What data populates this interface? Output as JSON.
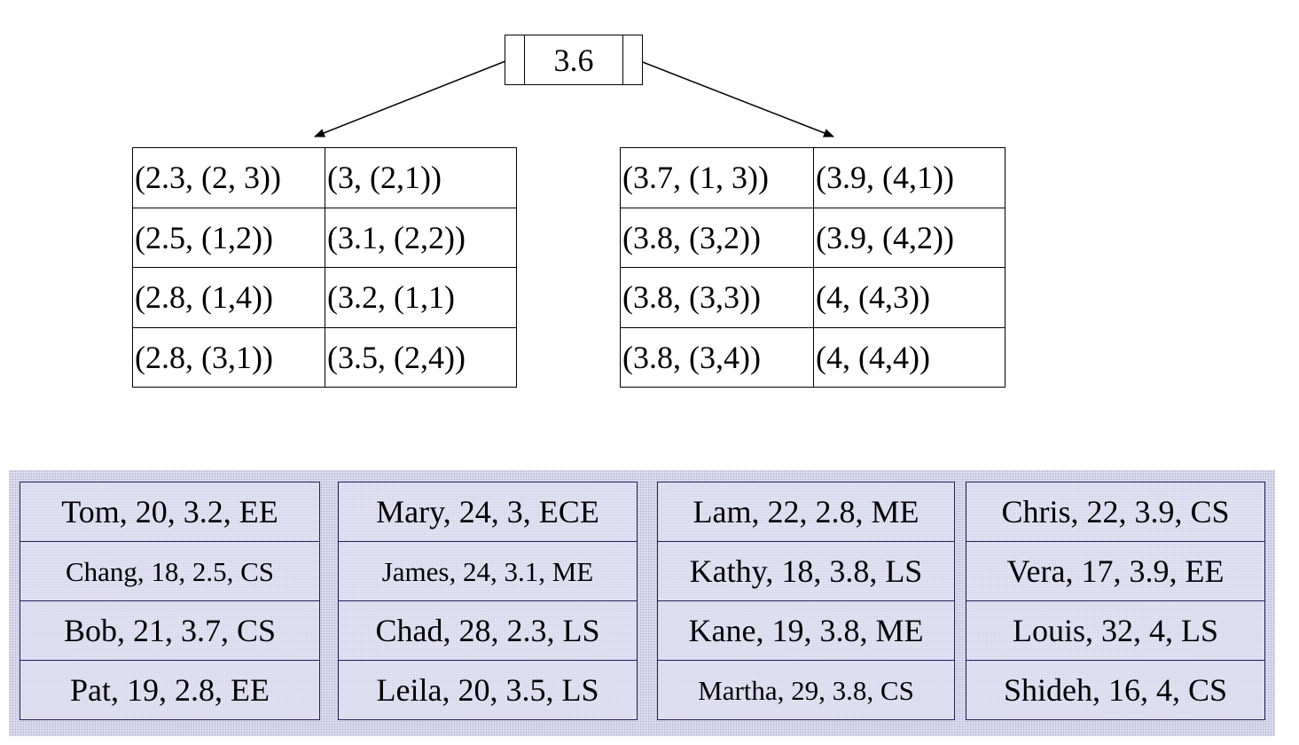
{
  "root": {
    "key": "3.6"
  },
  "leaves": [
    {
      "rows": [
        [
          "(2.3, (2, 3))",
          "(3, (2,1))"
        ],
        [
          "(2.5, (1,2))",
          "(3.1, (2,2))"
        ],
        [
          "(2.8, (1,4))",
          "(3.2, (1,1)"
        ],
        [
          "(2.8, (3,1))",
          "(3.5, (2,4))"
        ]
      ]
    },
    {
      "rows": [
        [
          "(3.7, (1, 3))",
          "(3.9, (4,1))"
        ],
        [
          "(3.8, (3,2))",
          "(3.9, (4,2))"
        ],
        [
          "(3.8, (3,3))",
          "(4, (4,3))"
        ],
        [
          "(3.8, (3,4))",
          "(4, (4,4))"
        ]
      ]
    }
  ],
  "pages": [
    {
      "records": [
        "Tom, 20, 3.2, EE",
        "Chang, 18, 2.5, CS",
        "Bob, 21, 3.7, CS",
        "Pat, 19, 2.8, EE"
      ]
    },
    {
      "records": [
        "Mary, 24, 3, ECE",
        "James, 24, 3.1, ME",
        "Chad, 28, 2.3, LS",
        "Leila, 20, 3.5, LS"
      ]
    },
    {
      "records": [
        "Lam, 22, 2.8, ME",
        "Kathy, 18, 3.8, LS",
        "Kane, 19, 3.8, ME",
        "Martha, 29, 3.8, CS"
      ]
    },
    {
      "records": [
        "Chris, 22, 3.9, CS",
        "Vera, 17, 3.9, EE",
        "Louis, 32, 4, LS",
        "Shideh, 16, 4, CS"
      ]
    }
  ]
}
